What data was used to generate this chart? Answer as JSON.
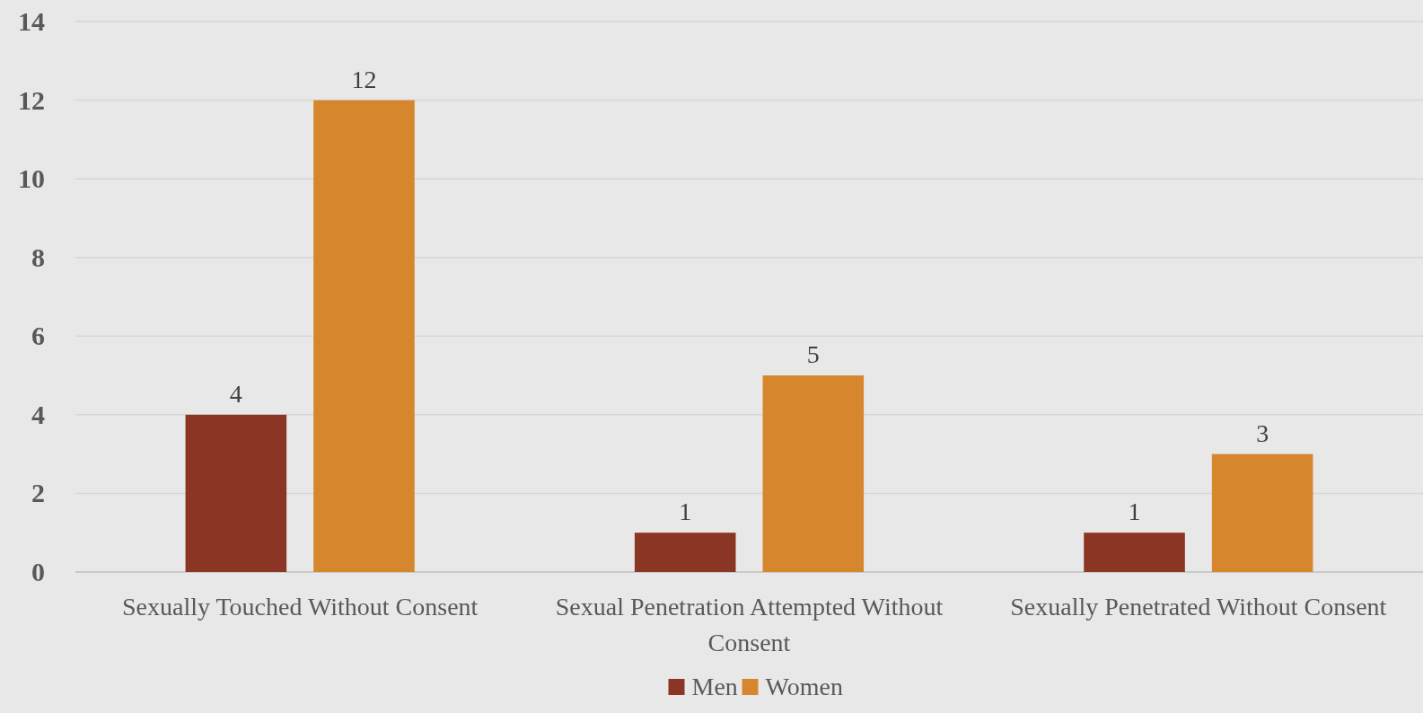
{
  "chart_data": {
    "type": "bar",
    "categories": [
      "Sexually Touched Without Consent",
      "Sexual Penetration Attempted Without Consent",
      "Sexually Penetrated Without Consent"
    ],
    "series": [
      {
        "name": "Men",
        "color": "#8b3524",
        "values": [
          4,
          1,
          1
        ]
      },
      {
        "name": "Women",
        "color": "#d6872e",
        "values": [
          12,
          5,
          3
        ]
      }
    ],
    "ylim": [
      0,
      14
    ],
    "yticks": [
      0,
      2,
      4,
      6,
      8,
      10,
      12,
      14
    ],
    "grid": "y",
    "legend": "bottom",
    "data_labels": true
  }
}
